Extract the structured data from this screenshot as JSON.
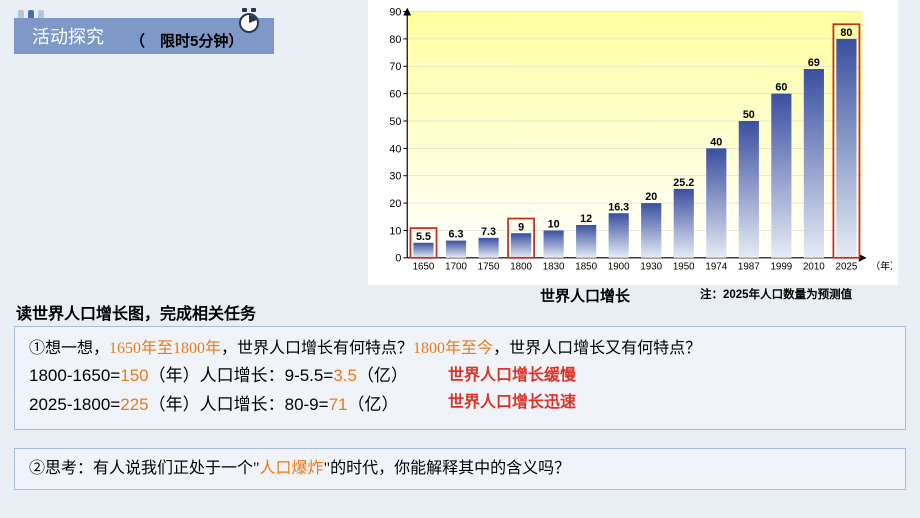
{
  "deco_bars": [
    "#b8c4d8",
    "#4a6fa8",
    "#b8c4d8"
  ],
  "header": {
    "title": "活动探究",
    "timer": "（　限时5分钟）"
  },
  "task_title": "读世界人口增长图，完成相关任务",
  "chart": {
    "type": "bar",
    "title": "世界人口增长",
    "note": "注：2025年人口数量为预测值",
    "xlabel": "（年）",
    "ylim": [
      0,
      90
    ],
    "ytick_step": 10,
    "categories": [
      "1650",
      "1700",
      "1750",
      "1800",
      "1830",
      "1850",
      "1900",
      "1930",
      "1950",
      "1974",
      "1987",
      "1999",
      "2010",
      "2025"
    ],
    "values": [
      5.5,
      6.3,
      7.3,
      9,
      10,
      12,
      16.3,
      20,
      25.2,
      40,
      50,
      60,
      69,
      80
    ],
    "bar_top_color": "#3a4fa0",
    "bar_bottom_color": "#e6ecf5",
    "background_top": "#ffffa0",
    "background_bottom": "#ffffff",
    "axis_color": "#000000",
    "grid_color": "#d0d0d0",
    "highlight_color": "#c43020",
    "highlight_indices": [
      0,
      3,
      13
    ],
    "axis_fontsize": 11,
    "label_fontsize": 10
  },
  "q1": {
    "prefix": "①想一想，",
    "period1": "1650年至1800年",
    "mid1": "，世界人口增长有何特点？",
    "period2": "1800年至今",
    "mid2": "，世界人口增长又有何特点？",
    "calc1a": "1800-1650=",
    "calc1b": "150",
    "calc1c": "（年）人口增长：9-5.5=",
    "calc1d": "3.5",
    "calc1e": "（亿）",
    "calc2a": "2025-1800=",
    "calc2b": "225",
    "calc2c": "（年）人口增长：80-9=",
    "calc2d": "71",
    "calc2e": "（亿）",
    "ans1": "世界人口增长缓慢",
    "ans2": "世界人口增长迅速"
  },
  "q2": {
    "prefix": "②思考：有人说我们正处于一个\"",
    "keyword": "人口爆炸",
    "suffix": "\"的时代，你能解释其中的含义吗？"
  }
}
